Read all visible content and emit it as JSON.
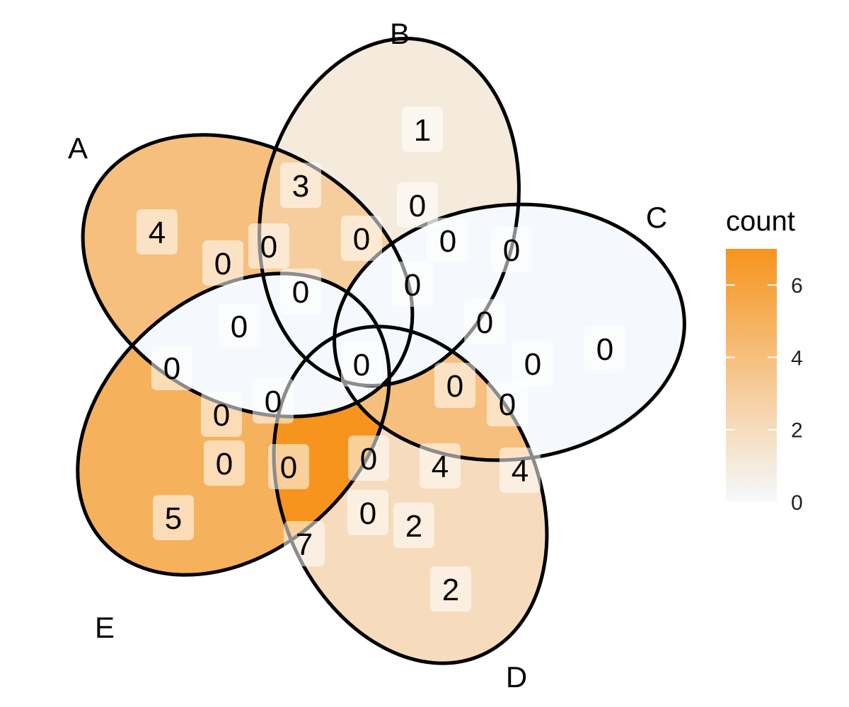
{
  "chart_data": {
    "type": "venn",
    "sets": [
      "A",
      "B",
      "C",
      "D",
      "E"
    ],
    "regions": [
      {
        "sets": [
          "A"
        ],
        "count": 4
      },
      {
        "sets": [
          "B"
        ],
        "count": 1
      },
      {
        "sets": [
          "C"
        ],
        "count": 0
      },
      {
        "sets": [
          "D"
        ],
        "count": 2
      },
      {
        "sets": [
          "E"
        ],
        "count": 5
      },
      {
        "sets": [
          "A",
          "B"
        ],
        "count": 3
      },
      {
        "sets": [
          "A",
          "C"
        ],
        "count": 0
      },
      {
        "sets": [
          "A",
          "D"
        ],
        "count": 0
      },
      {
        "sets": [
          "A",
          "E"
        ],
        "count": 0
      },
      {
        "sets": [
          "B",
          "C"
        ],
        "count": 0
      },
      {
        "sets": [
          "B",
          "D"
        ],
        "count": 0
      },
      {
        "sets": [
          "B",
          "E"
        ],
        "count": 0
      },
      {
        "sets": [
          "C",
          "D"
        ],
        "count": 4
      },
      {
        "sets": [
          "C",
          "E"
        ],
        "count": 0
      },
      {
        "sets": [
          "D",
          "E"
        ],
        "count": 7
      },
      {
        "sets": [
          "A",
          "B",
          "C"
        ],
        "count": 0
      },
      {
        "sets": [
          "A",
          "B",
          "D"
        ],
        "count": 0
      },
      {
        "sets": [
          "A",
          "B",
          "E"
        ],
        "count": 0
      },
      {
        "sets": [
          "A",
          "C",
          "D"
        ],
        "count": 0
      },
      {
        "sets": [
          "A",
          "C",
          "E"
        ],
        "count": 0
      },
      {
        "sets": [
          "A",
          "D",
          "E"
        ],
        "count": 0
      },
      {
        "sets": [
          "B",
          "C",
          "D"
        ],
        "count": 0
      },
      {
        "sets": [
          "B",
          "C",
          "E"
        ],
        "count": 0
      },
      {
        "sets": [
          "B",
          "D",
          "E"
        ],
        "count": 0
      },
      {
        "sets": [
          "C",
          "D",
          "E"
        ],
        "count": 4
      },
      {
        "sets": [
          "A",
          "B",
          "C",
          "D"
        ],
        "count": 0
      },
      {
        "sets": [
          "A",
          "B",
          "C",
          "E"
        ],
        "count": 0
      },
      {
        "sets": [
          "A",
          "B",
          "D",
          "E"
        ],
        "count": 0
      },
      {
        "sets": [
          "A",
          "C",
          "D",
          "E"
        ],
        "count": 0
      },
      {
        "sets": [
          "B",
          "C",
          "D",
          "E"
        ],
        "count": 2
      },
      {
        "sets": [
          "A",
          "B",
          "C",
          "D",
          "E"
        ],
        "count": 0
      }
    ],
    "legend": {
      "title": "count",
      "ticks": [
        0,
        2,
        4,
        6
      ],
      "tick_labels": [
        "0",
        "2",
        "4",
        "6"
      ],
      "range": [
        0,
        7
      ],
      "low_color": "#f5f9fd",
      "high_color": "#f7941d",
      "position": "right"
    }
  }
}
